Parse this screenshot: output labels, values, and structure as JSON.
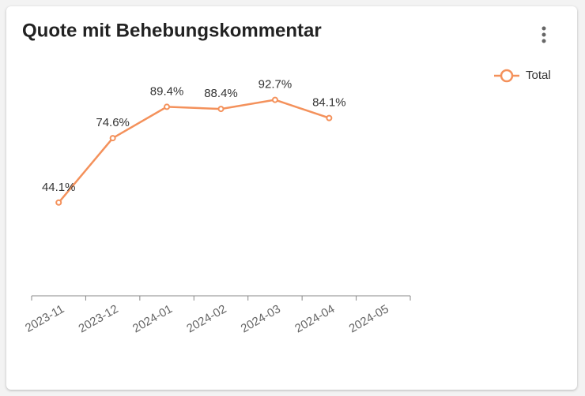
{
  "chart_data": {
    "type": "line",
    "title": "Quote mit Behebungskommentar",
    "categories": [
      "2023-11",
      "2023-12",
      "2024-01",
      "2024-02",
      "2024-03",
      "2024-04",
      "2024-05"
    ],
    "series": [
      {
        "name": "Total",
        "color": "#f4915b",
        "values": [
          44.1,
          74.6,
          89.4,
          88.4,
          92.7,
          84.1,
          null
        ],
        "value_labels": [
          "44.1%",
          "74.6%",
          "89.4%",
          "88.4%",
          "92.7%",
          "84.1%",
          null
        ]
      }
    ],
    "ylim": [
      0,
      100
    ],
    "legend": "top-right"
  }
}
